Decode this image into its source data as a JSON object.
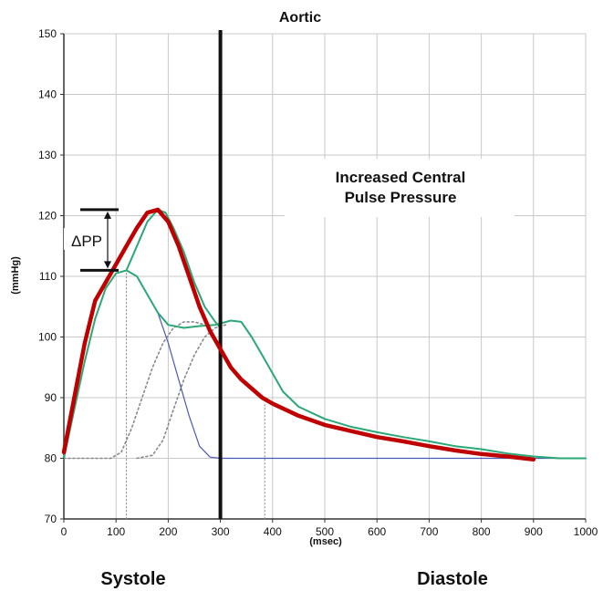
{
  "chart_data": {
    "type": "line",
    "title": "Aortic",
    "xlabel": "(msec)",
    "ylabel": "(mmHg)",
    "xlim": [
      0,
      1000
    ],
    "ylim": [
      70,
      150
    ],
    "x_ticks": [
      0,
      100,
      200,
      300,
      400,
      500,
      600,
      700,
      800,
      900,
      1000
    ],
    "y_ticks": [
      70,
      80,
      90,
      100,
      110,
      120,
      130,
      140,
      150
    ],
    "grid": true,
    "colors": {
      "red_curve": "#c00000",
      "green_curve": "#2aa876",
      "blue_curve": "#4a5ab8",
      "dotted_curves": "#888888",
      "divider": "#111111"
    },
    "annotations": {
      "box_line1": "Increased Central",
      "box_line2": "Pulse Pressure",
      "delta_label": "ΔPP",
      "systole": "Systole",
      "diastole": "Diastole"
    },
    "divider_x": 300,
    "delta_pp": {
      "x": 70,
      "y_low": 111,
      "y_high": 121
    },
    "series": [
      {
        "key": "red",
        "values": [
          [
            0,
            81
          ],
          [
            20,
            90
          ],
          [
            40,
            99
          ],
          [
            60,
            106
          ],
          [
            80,
            109
          ],
          [
            100,
            112
          ],
          [
            120,
            115
          ],
          [
            140,
            118
          ],
          [
            160,
            120.5
          ],
          [
            180,
            121
          ],
          [
            200,
            119
          ],
          [
            220,
            115
          ],
          [
            240,
            110
          ],
          [
            260,
            105
          ],
          [
            280,
            101
          ],
          [
            300,
            98
          ],
          [
            320,
            95
          ],
          [
            340,
            93
          ],
          [
            360,
            91.5
          ],
          [
            380,
            90
          ],
          [
            400,
            89
          ],
          [
            450,
            87
          ],
          [
            500,
            85.5
          ],
          [
            550,
            84.5
          ],
          [
            600,
            83.5
          ],
          [
            650,
            82.8
          ],
          [
            700,
            82
          ],
          [
            750,
            81.3
          ],
          [
            800,
            80.7
          ],
          [
            850,
            80.3
          ],
          [
            900,
            79.8
          ]
        ]
      },
      {
        "key": "green",
        "values": [
          [
            0,
            80
          ],
          [
            20,
            88
          ],
          [
            40,
            96
          ],
          [
            60,
            103
          ],
          [
            80,
            108
          ],
          [
            100,
            110.5
          ],
          [
            120,
            111
          ],
          [
            140,
            110
          ],
          [
            160,
            107
          ],
          [
            180,
            104
          ],
          [
            200,
            102
          ],
          [
            230,
            101.5
          ],
          [
            260,
            101.8
          ],
          [
            290,
            102
          ],
          [
            320,
            102.7
          ],
          [
            340,
            102.5
          ],
          [
            360,
            100
          ],
          [
            380,
            97
          ],
          [
            400,
            94
          ],
          [
            420,
            91
          ],
          [
            450,
            88.5
          ],
          [
            500,
            86.5
          ],
          [
            550,
            85.2
          ],
          [
            600,
            84.3
          ],
          [
            650,
            83.5
          ],
          [
            700,
            82.8
          ],
          [
            750,
            82
          ],
          [
            800,
            81.5
          ],
          [
            850,
            80.8
          ],
          [
            900,
            80.3
          ],
          [
            950,
            80
          ],
          [
            1000,
            80
          ]
        ]
      },
      {
        "key": "green_peak",
        "values": [
          [
            120,
            111
          ],
          [
            140,
            115
          ],
          [
            160,
            119
          ],
          [
            180,
            121
          ],
          [
            195,
            120.5
          ],
          [
            210,
            118
          ],
          [
            230,
            114
          ],
          [
            250,
            109
          ],
          [
            270,
            105
          ],
          [
            290,
            102.5
          ],
          [
            300,
            101.5
          ]
        ]
      },
      {
        "key": "blue",
        "values": [
          [
            120,
            111
          ],
          [
            140,
            110
          ],
          [
            160,
            107
          ],
          [
            180,
            104
          ],
          [
            200,
            99
          ],
          [
            220,
            93
          ],
          [
            240,
            87
          ],
          [
            260,
            82
          ],
          [
            280,
            80.2
          ],
          [
            300,
            80
          ],
          [
            400,
            80
          ],
          [
            600,
            80
          ],
          [
            800,
            80
          ],
          [
            1000,
            80
          ]
        ]
      },
      {
        "key": "dotted1",
        "values": [
          [
            0,
            80
          ],
          [
            90,
            80
          ],
          [
            110,
            81
          ],
          [
            130,
            85
          ],
          [
            150,
            90
          ],
          [
            170,
            95
          ],
          [
            190,
            99
          ],
          [
            210,
            101.5
          ],
          [
            230,
            102.5
          ],
          [
            250,
            102.5
          ],
          [
            270,
            102
          ]
        ]
      },
      {
        "key": "dotted2",
        "values": [
          [
            140,
            80
          ],
          [
            170,
            80.5
          ],
          [
            190,
            83
          ],
          [
            210,
            88
          ],
          [
            230,
            93
          ],
          [
            250,
            97
          ],
          [
            270,
            100
          ],
          [
            290,
            101.5
          ],
          [
            310,
            102
          ]
        ]
      },
      {
        "key": "dotted_v1",
        "values": [
          [
            120,
            70
          ],
          [
            120,
            111
          ]
        ]
      },
      {
        "key": "dotted_v2",
        "values": [
          [
            385,
            70
          ],
          [
            385,
            89
          ]
        ]
      }
    ]
  }
}
